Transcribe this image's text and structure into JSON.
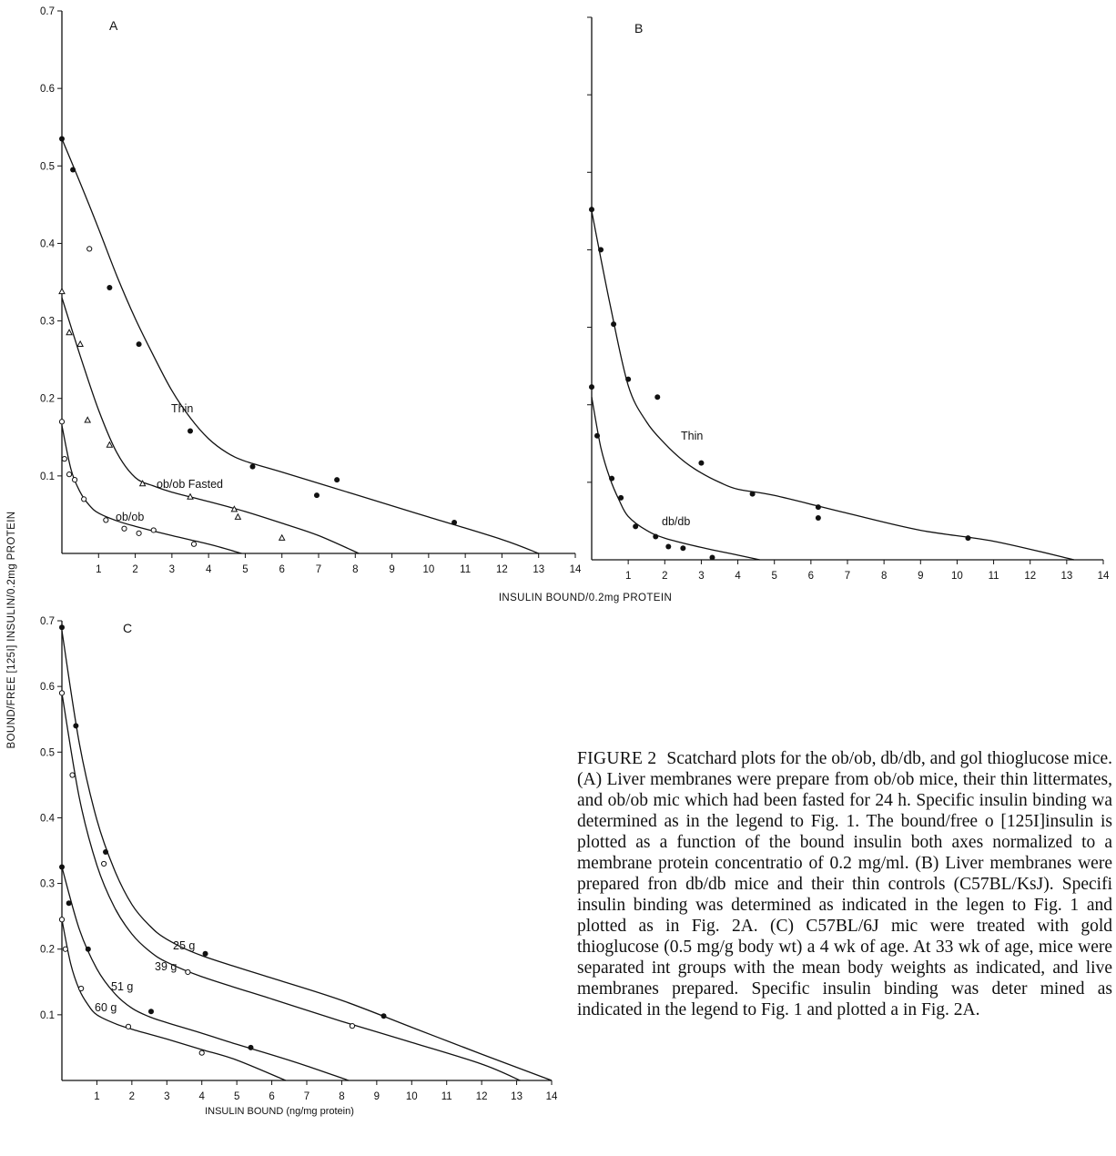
{
  "figure": {
    "shared_ylabel": "BOUND/FREE [125I] INSULIN/0.2mg PROTEIN",
    "shared_xlabel_top": "INSULIN BOUND/0.2mg PROTEIN",
    "caption_label": "FIGURE 2",
    "caption_text": "Scatchard plots for the ob/ob, db/db, and gol thioglucose mice. (A) Liver membranes were prepare from ob/ob mice, their thin littermates, and ob/ob mic which had been fasted for 24 h. Specific insulin binding wa determined as in the legend to Fig. 1. The bound/free o [125I]insulin is plotted as a function of the bound insulin both axes normalized to a membrane protein concentratio of 0.2 mg/ml. (B) Liver membranes were prepared fron db/db mice and their thin controls (C57BL/KsJ). Specifi insulin binding was determined as indicated in the legen to Fig. 1 and plotted as in Fig. 2A. (C) C57BL/6J mic were treated with gold thioglucose (0.5 mg/g body wt) a 4 wk of age. At 33 wk of age, mice were separated int groups with the mean body weights as indicated, and live membranes prepared. Specific insulin binding was deter mined as indicated in the legend to Fig. 1 and plotted a in Fig. 2A."
  },
  "chart_data": [
    {
      "panel": "A",
      "type": "scatter",
      "xlabel": "",
      "ylabel": "",
      "xlim": [
        0,
        14
      ],
      "ylim": [
        0,
        0.7
      ],
      "xticks": [
        "1",
        "2",
        "3",
        "4",
        "5",
        "6",
        "7",
        "8",
        "9",
        "10",
        "11",
        "12",
        "13",
        "14"
      ],
      "yticks": [
        "0.1",
        "0.2",
        "0.3",
        "0.4",
        "0.5",
        "0.6",
        "0.7"
      ],
      "series": [
        {
          "name": "Thin",
          "marker": "filled-circle",
          "x": [
            0,
            0.3,
            1.3,
            2.1,
            3.5,
            5.2,
            6.95,
            7.5,
            10.7
          ],
          "y": [
            0.535,
            0.495,
            0.343,
            0.27,
            0.158,
            0.112,
            0.075,
            0.095,
            0.04
          ],
          "curve_x": [
            0,
            0.5,
            1.0,
            1.5,
            2.0,
            2.5,
            3.0,
            3.5,
            4.0,
            4.5,
            5.0,
            6.0,
            8.0,
            10.0,
            12.0,
            13.0
          ],
          "curve_y": [
            0.535,
            0.478,
            0.419,
            0.358,
            0.303,
            0.255,
            0.21,
            0.175,
            0.148,
            0.13,
            0.119,
            0.105,
            0.076,
            0.047,
            0.018,
            0.0
          ]
        },
        {
          "name": "ob/ob Fasted",
          "marker": "open-triangle",
          "x": [
            0,
            0.2,
            0.5,
            0.7,
            1.3,
            2.2,
            3.5,
            4.7,
            4.8,
            6.0
          ],
          "y": [
            0.338,
            0.285,
            0.27,
            0.172,
            0.14,
            0.09,
            0.073,
            0.057,
            0.047,
            0.02
          ],
          "curve_x": [
            0,
            0.5,
            1.0,
            1.5,
            2.0,
            2.5,
            3.0,
            4.0,
            5.0,
            6.0,
            7.0,
            8.1
          ],
          "curve_y": [
            0.33,
            0.255,
            0.185,
            0.13,
            0.098,
            0.087,
            0.079,
            0.067,
            0.054,
            0.039,
            0.023,
            0.0
          ]
        },
        {
          "name": "ob/ob",
          "marker": "open-circle",
          "x": [
            0,
            0.07,
            0.2,
            0.35,
            0.6,
            0.75,
            1.2,
            1.7,
            2.1,
            2.5,
            3.6
          ],
          "y": [
            0.17,
            0.122,
            0.102,
            0.095,
            0.07,
            0.393,
            0.043,
            0.032,
            0.026,
            0.03,
            0.012
          ],
          "curve_x": [
            0,
            0.25,
            0.5,
            0.75,
            1.0,
            1.5,
            2.0,
            3.0,
            4.0,
            4.9
          ],
          "curve_y": [
            0.165,
            0.108,
            0.079,
            0.062,
            0.052,
            0.042,
            0.035,
            0.023,
            0.012,
            0.0
          ]
        }
      ]
    },
    {
      "panel": "B",
      "type": "scatter",
      "xlabel": "",
      "ylabel": "",
      "xlim": [
        0,
        14
      ],
      "ylim": [
        0,
        0.7
      ],
      "xticks": [
        "1",
        "2",
        "3",
        "4",
        "5",
        "6",
        "7",
        "8",
        "9",
        "10",
        "11",
        "12",
        "13",
        "14"
      ],
      "yticks": [],
      "series": [
        {
          "name": "Thin",
          "marker": "filled-circle",
          "x": [
            0,
            0.25,
            0.6,
            1.0,
            1.8,
            3.0,
            4.4,
            6.2,
            6.2,
            10.3
          ],
          "y": [
            0.452,
            0.4,
            0.304,
            0.233,
            0.21,
            0.125,
            0.085,
            0.068,
            0.054,
            0.028
          ],
          "curve_x": [
            0,
            0.5,
            1.0,
            1.5,
            2.0,
            2.5,
            3.0,
            3.5,
            4.0,
            5.0,
            7.0,
            9.0,
            11.0,
            13.2
          ],
          "curve_y": [
            0.45,
            0.33,
            0.225,
            0.178,
            0.15,
            0.128,
            0.112,
            0.1,
            0.091,
            0.083,
            0.06,
            0.038,
            0.024,
            0.0
          ]
        },
        {
          "name": "db/db",
          "marker": "filled-circle",
          "x": [
            0,
            0.15,
            0.55,
            0.8,
            1.2,
            1.75,
            2.1,
            2.5,
            3.3
          ],
          "y": [
            0.223,
            0.16,
            0.105,
            0.08,
            0.043,
            0.03,
            0.017,
            0.015,
            0.003
          ],
          "curve_x": [
            0,
            0.25,
            0.5,
            0.75,
            1.0,
            1.5,
            2.0,
            3.0,
            4.0,
            4.6
          ],
          "curve_y": [
            0.21,
            0.145,
            0.105,
            0.077,
            0.056,
            0.038,
            0.028,
            0.016,
            0.006,
            0.0
          ]
        }
      ]
    },
    {
      "panel": "C",
      "type": "scatter",
      "xlabel": "INSULIN BOUND (ng/mg protein)",
      "ylabel": "",
      "xlim": [
        0,
        14
      ],
      "ylim": [
        0,
        0.7
      ],
      "xticks": [
        "1",
        "2",
        "3",
        "4",
        "5",
        "6",
        "7",
        "8",
        "9",
        "10",
        "11",
        "12",
        "13",
        "14"
      ],
      "yticks": [
        "0.1",
        "0.2",
        "0.3",
        "0.4",
        "0.5",
        "0.6",
        "0.7"
      ],
      "series": [
        {
          "name": "25 g",
          "marker": "filled-circle",
          "x": [
            0,
            0.4,
            1.25,
            4.1,
            9.2
          ],
          "y": [
            0.69,
            0.54,
            0.348,
            0.193,
            0.098
          ],
          "curve_x": [
            0,
            0.5,
            1.0,
            1.5,
            2.0,
            2.5,
            3.0,
            4.0,
            6.0,
            8.0,
            10.0,
            12.0,
            14.0
          ],
          "curve_y": [
            0.685,
            0.513,
            0.397,
            0.321,
            0.268,
            0.236,
            0.215,
            0.19,
            0.156,
            0.122,
            0.081,
            0.04,
            0.0
          ]
        },
        {
          "name": "39 g",
          "marker": "open-circle",
          "x": [
            0,
            0.3,
            1.2,
            3.6,
            8.3
          ],
          "y": [
            0.59,
            0.465,
            0.33,
            0.165,
            0.083
          ],
          "curve_x": [
            0,
            0.5,
            1.0,
            1.5,
            2.0,
            2.5,
            3.0,
            4.0,
            6.0,
            8.0,
            10.0,
            12.0,
            13.1
          ],
          "curve_y": [
            0.59,
            0.43,
            0.328,
            0.264,
            0.223,
            0.197,
            0.18,
            0.158,
            0.124,
            0.09,
            0.058,
            0.025,
            0.0
          ]
        },
        {
          "name": "51 g",
          "marker": "filled-circle",
          "x": [
            0,
            0.2,
            0.75,
            2.55,
            5.4
          ],
          "y": [
            0.325,
            0.27,
            0.2,
            0.105,
            0.05
          ],
          "curve_x": [
            0,
            0.5,
            1.0,
            1.5,
            2.0,
            2.5,
            3.0,
            4.0,
            5.0,
            6.0,
            7.0,
            8.2
          ],
          "curve_y": [
            0.325,
            0.23,
            0.17,
            0.133,
            0.11,
            0.097,
            0.088,
            0.072,
            0.055,
            0.039,
            0.022,
            0.0
          ]
        },
        {
          "name": "60 g",
          "marker": "open-circle",
          "x": [
            0,
            0.1,
            0.55,
            1.9,
            4.0
          ],
          "y": [
            0.245,
            0.2,
            0.14,
            0.082,
            0.042
          ],
          "curve_x": [
            0,
            0.25,
            0.5,
            0.75,
            1.0,
            1.5,
            2.0,
            3.0,
            4.0,
            5.0,
            6.4
          ],
          "curve_y": [
            0.245,
            0.178,
            0.138,
            0.115,
            0.1,
            0.087,
            0.078,
            0.063,
            0.047,
            0.031,
            0.0
          ]
        }
      ]
    }
  ]
}
